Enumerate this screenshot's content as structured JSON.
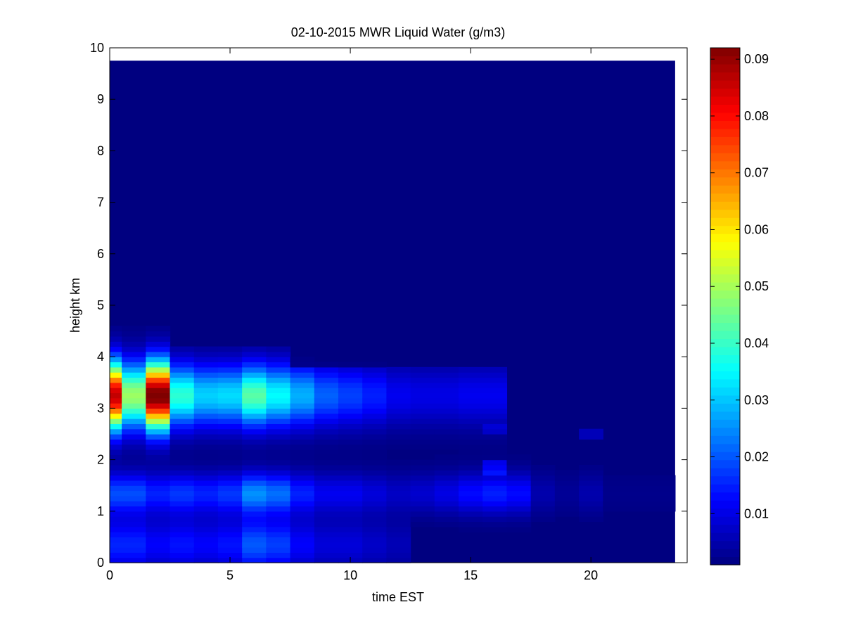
{
  "chart_data": {
    "type": "heatmap",
    "title": "02-10-2015 MWR Liquid Water (g/m3)",
    "xlabel": "time EST",
    "ylabel": "height km",
    "xlim": [
      0,
      24
    ],
    "ylim": [
      0,
      10
    ],
    "xticks": [
      0,
      5,
      10,
      15,
      20
    ],
    "yticks": [
      0,
      1,
      2,
      3,
      4,
      5,
      6,
      7,
      8,
      9,
      10
    ],
    "colorbar": {
      "colormap": "jet",
      "clim": [
        0.001,
        0.092
      ],
      "ticks": [
        0.01,
        0.02,
        0.03,
        0.04,
        0.05,
        0.06,
        0.07,
        0.08,
        0.09
      ],
      "tick_labels": [
        "0.01",
        "0.02",
        "0.03",
        "0.04",
        "0.05",
        "0.06",
        "0.07",
        "0.08",
        "0.09"
      ]
    },
    "grid": false,
    "data_extent": {
      "x": [
        0,
        23.5
      ],
      "y": [
        0,
        9.75
      ]
    },
    "time_bin_centers": [
      0.5,
      1.5,
      2.5,
      3.5,
      4.5,
      5.5,
      6.5,
      7.5,
      8.5,
      9.5,
      10.5,
      11.5,
      12.5,
      13.5,
      14.5,
      15.5,
      16.5,
      17.5,
      18.5,
      19.5,
      20.5,
      21.5,
      22.5,
      23.5
    ],
    "height_km_vs_liquid_water": {
      "note_columns": "time bins (hours EST)",
      "profiles": [
        {
          "t": 0.5,
          "h": [
            0.1,
            0.5,
            1.0,
            1.5,
            2.0,
            2.5,
            3.0,
            3.25,
            3.5,
            3.8,
            4.0,
            4.3
          ],
          "v": [
            0.02,
            0.018,
            0.018,
            0.018,
            0.017,
            0.03,
            0.08,
            0.085,
            0.06,
            0.048,
            0.03,
            0.01
          ]
        },
        {
          "t": 1.5,
          "h": [
            0.1,
            0.5,
            1.0,
            1.5,
            2.0,
            2.5,
            3.0,
            3.25,
            3.5,
            3.8,
            4.0,
            4.3
          ],
          "v": [
            0.016,
            0.018,
            0.02,
            0.022,
            0.02,
            0.025,
            0.048,
            0.05,
            0.035,
            0.03,
            0.02,
            0.008
          ]
        },
        {
          "t": 2.5,
          "h": [
            0.1,
            0.5,
            1.0,
            1.5,
            2.0,
            2.5,
            3.0,
            3.25,
            3.5,
            3.8,
            4.0,
            4.3
          ],
          "v": [
            0.01,
            0.012,
            0.018,
            0.02,
            0.018,
            0.028,
            0.09,
            0.092,
            0.075,
            0.062,
            0.045,
            0.012
          ]
        },
        {
          "t": 6.5,
          "h": [
            0.5,
            1.5,
            3.0,
            3.25,
            3.5
          ],
          "v": [
            0.018,
            0.026,
            0.04,
            0.042,
            0.035
          ]
        }
      ]
    }
  }
}
